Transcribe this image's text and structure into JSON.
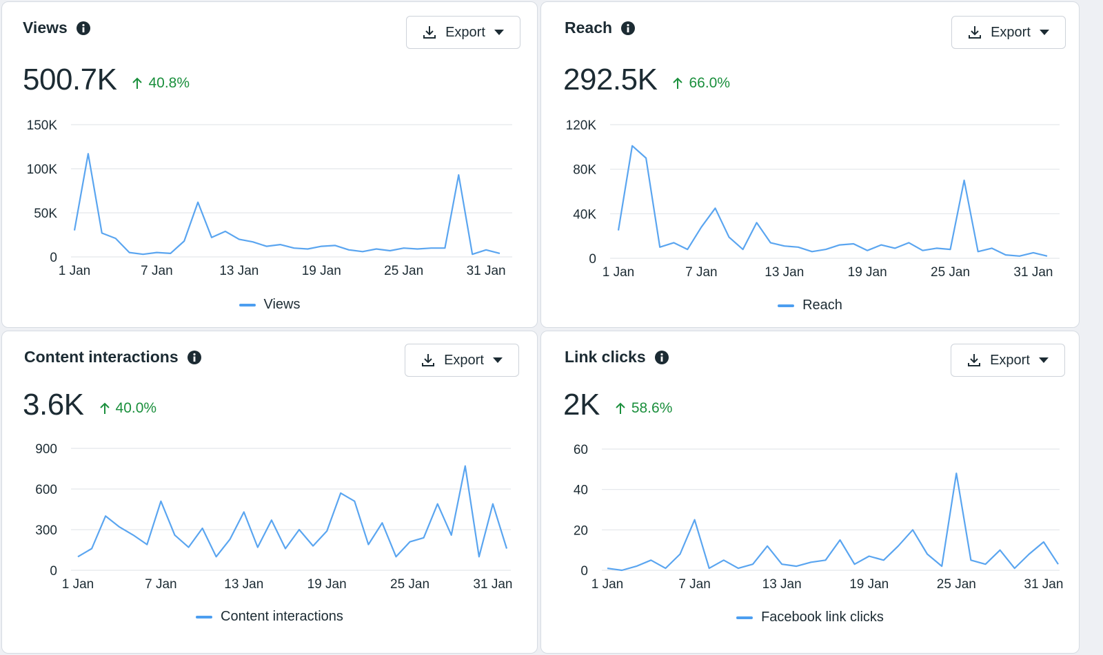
{
  "colors": {
    "line": "#5aa5f0",
    "grid": "#e3e6ea",
    "positive": "#1a8f3c"
  },
  "export_label": "Export",
  "cards": [
    {
      "title": "Views",
      "value": "500.7K",
      "change": "40.8%",
      "legend": "Views",
      "chart_data": {
        "type": "line",
        "title": "Views",
        "x": [
          "1 Jan",
          "2 Jan",
          "3 Jan",
          "4 Jan",
          "5 Jan",
          "6 Jan",
          "7 Jan",
          "8 Jan",
          "9 Jan",
          "10 Jan",
          "11 Jan",
          "12 Jan",
          "13 Jan",
          "14 Jan",
          "15 Jan",
          "16 Jan",
          "17 Jan",
          "18 Jan",
          "19 Jan",
          "20 Jan",
          "21 Jan",
          "22 Jan",
          "23 Jan",
          "24 Jan",
          "25 Jan",
          "26 Jan",
          "27 Jan",
          "28 Jan",
          "29 Jan",
          "30 Jan",
          "31 Jan",
          "1 Feb"
        ],
        "x_ticks": [
          "1 Jan",
          "7 Jan",
          "13 Jan",
          "19 Jan",
          "25 Jan",
          "31 Jan"
        ],
        "y_ticks": [
          "0",
          "50K",
          "100K",
          "150K"
        ],
        "ylim": [
          0,
          150000
        ],
        "series": [
          {
            "name": "Views",
            "values": [
              30000,
              117000,
              27000,
              21000,
              5000,
              3000,
              5000,
              4000,
              18000,
              62000,
              22000,
              29000,
              20000,
              17000,
              12000,
              14000,
              10000,
              9000,
              12000,
              13000,
              8000,
              6000,
              9000,
              7000,
              10000,
              9000,
              10000,
              10000,
              93000,
              3000,
              8000,
              4000
            ]
          }
        ]
      }
    },
    {
      "title": "Reach",
      "value": "292.5K",
      "change": "66.0%",
      "legend": "Reach",
      "chart_data": {
        "type": "line",
        "title": "Reach",
        "x": [
          "1 Jan",
          "2 Jan",
          "3 Jan",
          "4 Jan",
          "5 Jan",
          "6 Jan",
          "7 Jan",
          "8 Jan",
          "9 Jan",
          "10 Jan",
          "11 Jan",
          "12 Jan",
          "13 Jan",
          "14 Jan",
          "15 Jan",
          "16 Jan",
          "17 Jan",
          "18 Jan",
          "19 Jan",
          "20 Jan",
          "21 Jan",
          "22 Jan",
          "23 Jan",
          "24 Jan",
          "25 Jan",
          "26 Jan",
          "27 Jan",
          "28 Jan",
          "29 Jan",
          "30 Jan",
          "31 Jan",
          "1 Feb"
        ],
        "x_ticks": [
          "1 Jan",
          "7 Jan",
          "13 Jan",
          "19 Jan",
          "25 Jan",
          "31 Jan"
        ],
        "y_ticks": [
          "0",
          "40K",
          "80K",
          "120K"
        ],
        "ylim": [
          0,
          120000
        ],
        "series": [
          {
            "name": "Reach",
            "values": [
              25000,
              101000,
              90000,
              10000,
              14000,
              8000,
              28000,
              45000,
              19000,
              8000,
              32000,
              14000,
              11000,
              10000,
              6000,
              8000,
              12000,
              13000,
              7000,
              12000,
              9000,
              14000,
              7000,
              9000,
              8000,
              70000,
              6000,
              9000,
              3000,
              2000,
              5000,
              2000
            ]
          }
        ]
      }
    },
    {
      "title": "Content interactions",
      "value": "3.6K",
      "change": "40.0%",
      "legend": "Content interactions",
      "chart_data": {
        "type": "line",
        "title": "Content interactions",
        "x": [
          "1 Jan",
          "2 Jan",
          "3 Jan",
          "4 Jan",
          "5 Jan",
          "6 Jan",
          "7 Jan",
          "8 Jan",
          "9 Jan",
          "10 Jan",
          "11 Jan",
          "12 Jan",
          "13 Jan",
          "14 Jan",
          "15 Jan",
          "16 Jan",
          "17 Jan",
          "18 Jan",
          "19 Jan",
          "20 Jan",
          "21 Jan",
          "22 Jan",
          "23 Jan",
          "24 Jan",
          "25 Jan",
          "26 Jan",
          "27 Jan",
          "28 Jan",
          "29 Jan",
          "30 Jan",
          "31 Jan",
          "1 Feb"
        ],
        "x_ticks": [
          "1 Jan",
          "7 Jan",
          "13 Jan",
          "19 Jan",
          "25 Jan",
          "31 Jan"
        ],
        "y_ticks": [
          "0",
          "300",
          "600",
          "900"
        ],
        "ylim": [
          0,
          900
        ],
        "series": [
          {
            "name": "Content interactions",
            "values": [
              100,
              160,
              400,
              320,
              260,
              190,
              510,
              260,
              170,
              310,
              100,
              230,
              430,
              170,
              370,
              160,
              300,
              180,
              290,
              570,
              510,
              190,
              350,
              100,
              210,
              240,
              490,
              260,
              770,
              100,
              490,
              160
            ]
          }
        ]
      }
    },
    {
      "title": "Link clicks",
      "value": "2K",
      "change": "58.6%",
      "legend": "Facebook link clicks",
      "chart_data": {
        "type": "line",
        "title": "Link clicks",
        "x": [
          "1 Jan",
          "2 Jan",
          "3 Jan",
          "4 Jan",
          "5 Jan",
          "6 Jan",
          "7 Jan",
          "8 Jan",
          "9 Jan",
          "10 Jan",
          "11 Jan",
          "12 Jan",
          "13 Jan",
          "14 Jan",
          "15 Jan",
          "16 Jan",
          "17 Jan",
          "18 Jan",
          "19 Jan",
          "20 Jan",
          "21 Jan",
          "22 Jan",
          "23 Jan",
          "24 Jan",
          "25 Jan",
          "26 Jan",
          "27 Jan",
          "28 Jan",
          "29 Jan",
          "30 Jan",
          "31 Jan",
          "1 Feb"
        ],
        "x_ticks": [
          "1 Jan",
          "7 Jan",
          "13 Jan",
          "19 Jan",
          "25 Jan",
          "31 Jan"
        ],
        "y_ticks": [
          "0",
          "20",
          "40",
          "60"
        ],
        "ylim": [
          0,
          60
        ],
        "series": [
          {
            "name": "Facebook link clicks",
            "values": [
              1,
              0,
              2,
              5,
              1,
              8,
              25,
              1,
              5,
              1,
              3,
              12,
              3,
              2,
              4,
              5,
              15,
              3,
              7,
              5,
              12,
              20,
              8,
              2,
              48,
              5,
              3,
              10,
              1,
              8,
              14,
              3
            ]
          }
        ]
      }
    }
  ]
}
